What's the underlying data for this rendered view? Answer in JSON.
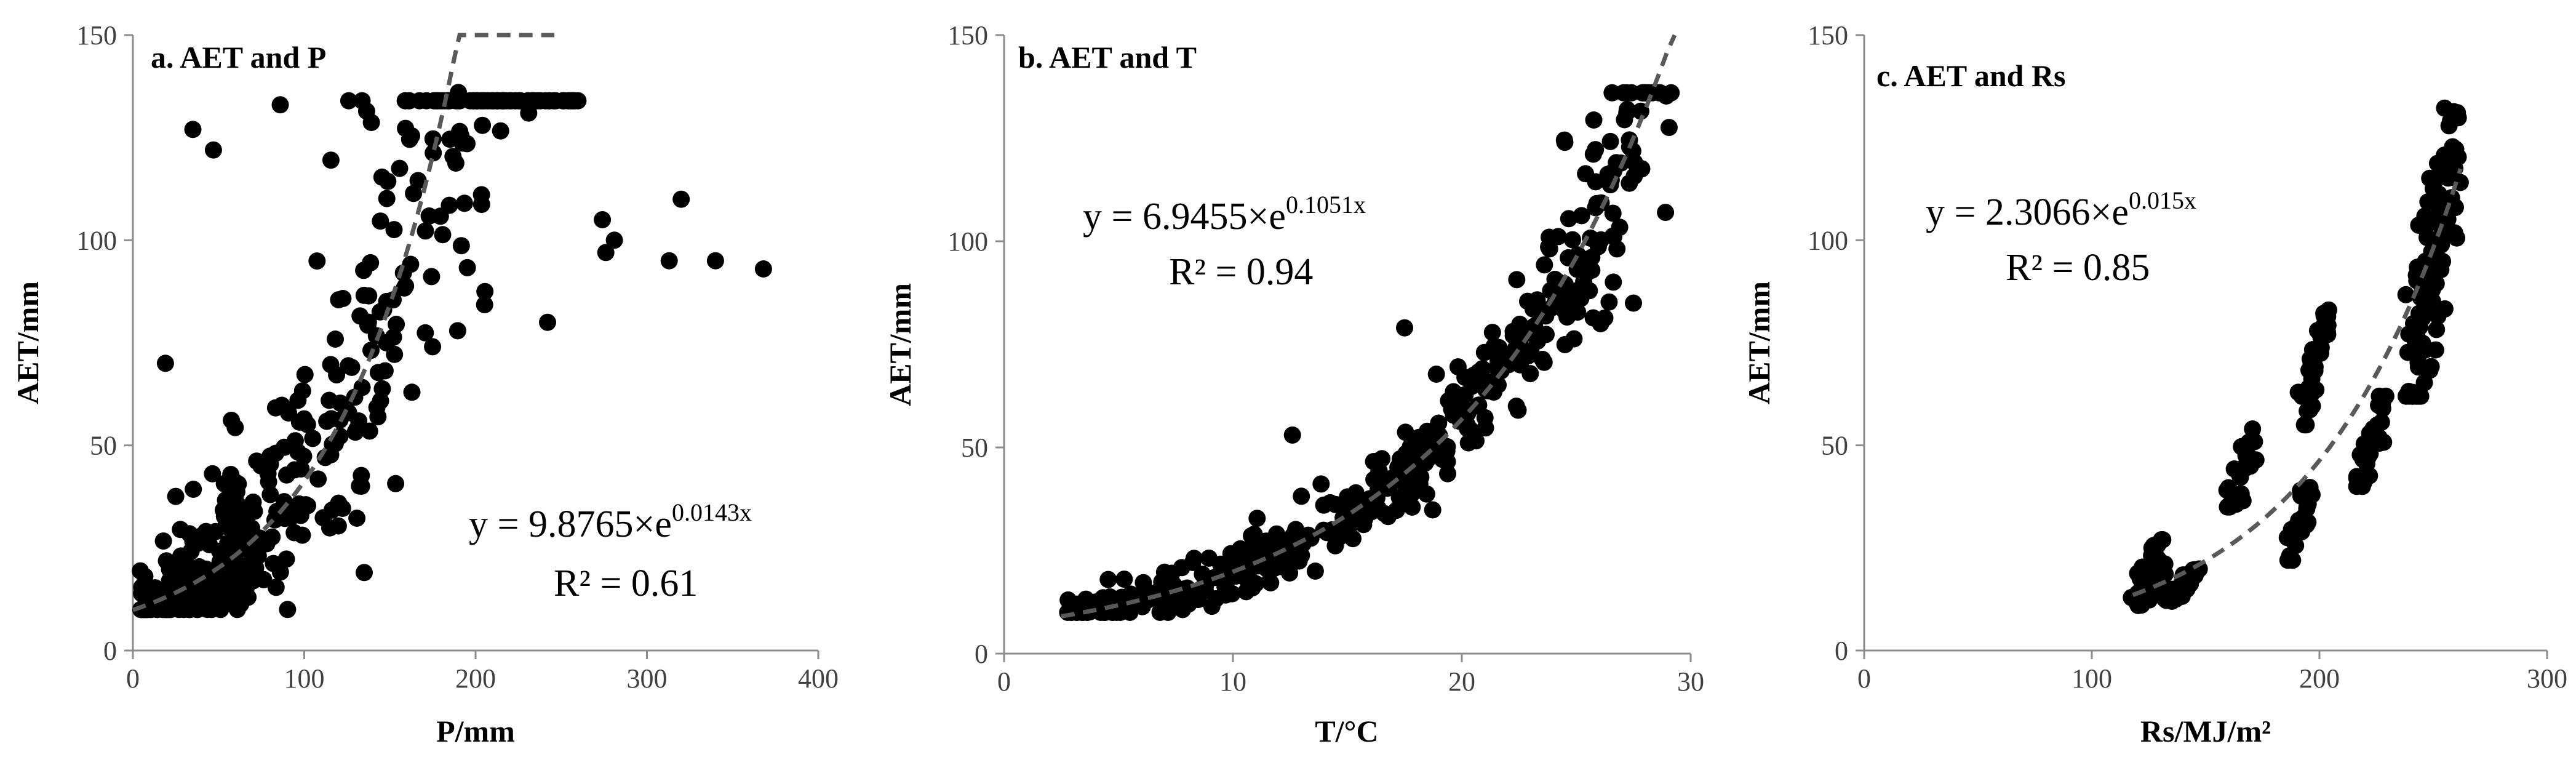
{
  "chart_data": [
    {
      "type": "scatter",
      "title": "a. AET and P",
      "xlabel": "P/mm",
      "ylabel": "AET/mm",
      "xlim": [
        0,
        400
      ],
      "ylim": [
        0,
        150
      ],
      "xticks": [
        "0",
        "100",
        "200",
        "300",
        "400"
      ],
      "yticks": [
        "0",
        "50",
        "100",
        "150"
      ],
      "equation": {
        "prefix": "y = 9.8765×e",
        "exponent": "0.0143x",
        "r2": "R² = 0.61"
      },
      "trendline": {
        "a": 9.8765,
        "b": 0.0143,
        "x_range": [
          0,
          246
        ]
      },
      "gen": {
        "seed": 11,
        "n": 430
      },
      "extra_points": [
        [
          35,
          127
        ],
        [
          47,
          122
        ],
        [
          86,
          133
        ],
        [
          126,
          134
        ],
        [
          190,
          136
        ],
        [
          204,
          128
        ],
        [
          231,
          131
        ],
        [
          274,
          105
        ],
        [
          276,
          97
        ],
        [
          281,
          100
        ],
        [
          313,
          95
        ],
        [
          320,
          110
        ],
        [
          340,
          95
        ],
        [
          368,
          93
        ],
        [
          19,
          70
        ],
        [
          135,
          19
        ],
        [
          242,
          80
        ]
      ]
    },
    {
      "type": "scatter",
      "title": "b. AET  and T",
      "xlabel": "T/°C",
      "ylabel": "AET/mm",
      "xlim": [
        0,
        30
      ],
      "ylim": [
        0,
        150
      ],
      "xticks": [
        "0",
        "10",
        "20",
        "30"
      ],
      "yticks": [
        "0",
        "50",
        "100",
        "150"
      ],
      "equation": {
        "prefix": "y = 6.9455×e",
        "exponent": "0.1051x",
        "r2": "R² = 0.94"
      },
      "trendline": {
        "a": 6.9455,
        "b": 0.1051,
        "x_range": [
          2.5,
          29.3
        ]
      },
      "gen": {
        "seed": 23,
        "n": 430
      },
      "extra_points": [
        [
          12.6,
          53
        ],
        [
          17.5,
          79
        ],
        [
          27.5,
          85
        ],
        [
          28.9,
          107
        ],
        [
          24.5,
          124
        ],
        [
          13.6,
          20
        ],
        [
          2.8,
          13
        ],
        [
          3.2,
          12
        ],
        [
          4,
          12.5
        ]
      ]
    },
    {
      "type": "scatter",
      "title": "c. AET  and Rs",
      "xlabel": "Rs/MJ/m²",
      "ylabel": "AET/mm",
      "xlim": [
        0,
        300
      ],
      "ylim": [
        0,
        150
      ],
      "xticks": [
        "0",
        "100",
        "200",
        "300"
      ],
      "yticks": [
        "0",
        "50",
        "100",
        "150"
      ],
      "equation": {
        "prefix": "y = 2.3066×e",
        "exponent": "0.015x",
        "r2": "R² = 0.85"
      },
      "trendline": {
        "a": 2.3066,
        "b": 0.015,
        "x_range": [
          118,
          262
        ]
      },
      "gen": {
        "seed": 37
      },
      "clusters": [
        {
          "x": [
            118,
            132
          ],
          "y": [
            11,
            27
          ],
          "n": 45
        },
        {
          "x": [
            133,
            145
          ],
          "y": [
            12,
            21
          ],
          "n": 30
        },
        {
          "x": [
            158,
            172
          ],
          "y": [
            35,
            54
          ],
          "n": 28
        },
        {
          "x": [
            186,
            196
          ],
          "y": [
            22,
            42
          ],
          "n": 32
        },
        {
          "x": [
            192,
            204
          ],
          "y": [
            55,
            85
          ],
          "n": 38
        },
        {
          "x": [
            215,
            228
          ],
          "y": [
            40,
            62
          ],
          "n": 32
        },
        {
          "x": [
            238,
            262
          ],
          "y": [
            62,
            136
          ],
          "n": 110
        }
      ]
    }
  ]
}
